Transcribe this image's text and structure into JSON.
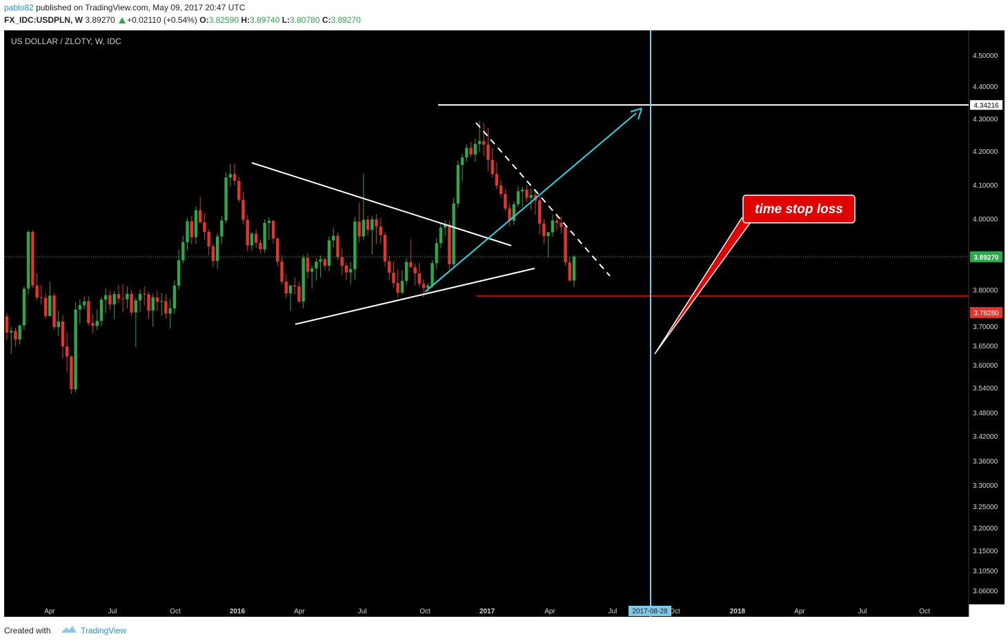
{
  "header": {
    "user": "pablo82",
    "published": "published on TradingView.com, May 09, 2017 20:47 UTC",
    "symbol": "FX_IDC:USDPLN, W",
    "last": "3.89270",
    "change": "+0.02110 (+0.54%)",
    "o_label": "O:",
    "o_value": "3.82590",
    "h_label": "H:",
    "h_value": "3.89740",
    "l_label": "L:",
    "l_value": "3.80780",
    "c_label": "C:",
    "c_value": "3.89270"
  },
  "footer": {
    "created_with": "Created with",
    "brand": "TradingView"
  },
  "colors": {
    "up": "#2ba84a",
    "down": "#e0362f",
    "cyan": "#2dd7e6",
    "vline": "#7fc8e8",
    "red_line": "#e00000",
    "callout": "#e00000"
  },
  "chart_data": {
    "type": "candlestick",
    "title": "US DOLLAR / ZLOTY, W, IDC",
    "price_ticks": [
      "4.50000",
      "4.40000",
      "4.30000",
      "4.20000",
      "4.10000",
      "4.00000",
      "3.80000",
      "3.70000",
      "3.65000",
      "3.60000",
      "3.54000",
      "3.48000",
      "3.42000",
      "3.36000",
      "3.30000",
      "3.25000",
      "3.20000",
      "3.15000",
      "3.10500",
      "3.06000"
    ],
    "time_ticks": [
      "Apr",
      "Jul",
      "Oct",
      "2016",
      "Apr",
      "Jul",
      "Oct",
      "2017",
      "Apr",
      "Jul",
      "Oct",
      "2018",
      "Apr",
      "Jul",
      "Oct"
    ],
    "time_ticks_bold": [
      false,
      false,
      false,
      true,
      false,
      false,
      false,
      true,
      false,
      false,
      false,
      true,
      false,
      false,
      false
    ],
    "last_price": "3.89270",
    "horizontal_level": "4.34216",
    "stop_level": "3.78280",
    "vertical_marker_date": "2017-08-28",
    "annotation": "time stop loss",
    "candles": [
      [
        3.727,
        3.737,
        3.664,
        3.684
      ],
      [
        3.684,
        3.699,
        3.628,
        3.688
      ],
      [
        3.688,
        3.697,
        3.648,
        3.666
      ],
      [
        3.666,
        3.706,
        3.653,
        3.702
      ],
      [
        3.702,
        3.809,
        3.691,
        3.803
      ],
      [
        3.803,
        3.968,
        3.787,
        3.963
      ],
      [
        3.963,
        3.967,
        3.804,
        3.812
      ],
      [
        3.812,
        3.847,
        3.772,
        3.779
      ],
      [
        3.779,
        3.814,
        3.759,
        3.778
      ],
      [
        3.778,
        3.791,
        3.721,
        3.728
      ],
      [
        3.728,
        3.823,
        3.727,
        3.784
      ],
      [
        3.784,
        3.791,
        3.692,
        3.698
      ],
      [
        3.698,
        3.743,
        3.675,
        3.713
      ],
      [
        3.713,
        3.731,
        3.617,
        3.648
      ],
      [
        3.648,
        3.685,
        3.581,
        3.622
      ],
      [
        3.622,
        3.625,
        3.525,
        3.536
      ],
      [
        3.536,
        3.767,
        3.528,
        3.746
      ],
      [
        3.746,
        3.774,
        3.708,
        3.758
      ],
      [
        3.758,
        3.781,
        3.746,
        3.768
      ],
      [
        3.768,
        3.781,
        3.702,
        3.709
      ],
      [
        3.709,
        3.732,
        3.683,
        3.701
      ],
      [
        3.701,
        3.746,
        3.691,
        3.715
      ],
      [
        3.715,
        3.779,
        3.701,
        3.773
      ],
      [
        3.773,
        3.804,
        3.735,
        3.785
      ],
      [
        3.785,
        3.798,
        3.745,
        3.76
      ],
      [
        3.76,
        3.796,
        3.719,
        3.788
      ],
      [
        3.788,
        3.814,
        3.763,
        3.776
      ],
      [
        3.776,
        3.816,
        3.739,
        3.774
      ],
      [
        3.774,
        3.809,
        3.749,
        3.789
      ],
      [
        3.789,
        3.8,
        3.729,
        3.738
      ],
      [
        3.738,
        3.779,
        3.646,
        3.771
      ],
      [
        3.771,
        3.801,
        3.739,
        3.789
      ],
      [
        3.789,
        3.809,
        3.756,
        3.787
      ],
      [
        3.787,
        3.795,
        3.721,
        3.743
      ],
      [
        3.743,
        3.789,
        3.699,
        3.779
      ],
      [
        3.779,
        3.797,
        3.742,
        3.767
      ],
      [
        3.767,
        3.791,
        3.728,
        3.769
      ],
      [
        3.769,
        3.789,
        3.721,
        3.735
      ],
      [
        3.735,
        3.774,
        3.694,
        3.749
      ],
      [
        3.749,
        3.827,
        3.734,
        3.812
      ],
      [
        3.812,
        3.913,
        3.799,
        3.883
      ],
      [
        3.883,
        3.952,
        3.873,
        3.934
      ],
      [
        3.934,
        4.003,
        3.911,
        3.993
      ],
      [
        3.993,
        4.008,
        3.929,
        3.948
      ],
      [
        3.948,
        4.037,
        3.929,
        4.025
      ],
      [
        4.025,
        4.065,
        3.987,
        3.99
      ],
      [
        3.99,
        4.016,
        3.941,
        3.963
      ],
      [
        3.963,
        3.97,
        3.897,
        3.922
      ],
      [
        3.922,
        3.931,
        3.864,
        3.881
      ],
      [
        3.881,
        3.958,
        3.859,
        3.95
      ],
      [
        3.95,
        4.008,
        3.93,
        3.995
      ],
      [
        3.995,
        4.138,
        3.987,
        4.122
      ],
      [
        4.122,
        4.162,
        4.096,
        4.132
      ],
      [
        4.132,
        4.163,
        4.099,
        4.112
      ],
      [
        4.112,
        4.123,
        4.049,
        4.056
      ],
      [
        4.056,
        4.08,
        3.984,
        3.997
      ],
      [
        3.997,
        4.011,
        3.908,
        3.925
      ],
      [
        3.925,
        3.963,
        3.91,
        3.958
      ],
      [
        3.958,
        3.969,
        3.918,
        3.932
      ],
      [
        3.932,
        3.942,
        3.902,
        3.914
      ],
      [
        3.914,
        3.999,
        3.904,
        3.988
      ],
      [
        3.988,
        4.004,
        3.94,
        3.994
      ],
      [
        3.994,
        3.996,
        3.93,
        3.944
      ],
      [
        3.944,
        3.948,
        3.868,
        3.879
      ],
      [
        3.879,
        3.897,
        3.814,
        3.823
      ],
      [
        3.823,
        3.845,
        3.777,
        3.79
      ],
      [
        3.79,
        3.813,
        3.741,
        3.812
      ],
      [
        3.812,
        3.835,
        3.787,
        3.809
      ],
      [
        3.809,
        3.822,
        3.765,
        3.768
      ],
      [
        3.768,
        3.898,
        3.749,
        3.89
      ],
      [
        3.89,
        3.903,
        3.832,
        3.851
      ],
      [
        3.851,
        3.868,
        3.804,
        3.86
      ],
      [
        3.86,
        3.889,
        3.826,
        3.879
      ],
      [
        3.879,
        3.896,
        3.835,
        3.886
      ],
      [
        3.886,
        3.891,
        3.856,
        3.868
      ],
      [
        3.868,
        3.949,
        3.853,
        3.939
      ],
      [
        3.939,
        3.975,
        3.92,
        3.952
      ],
      [
        3.952,
        3.961,
        3.883,
        3.892
      ],
      [
        3.892,
        3.917,
        3.841,
        3.868
      ],
      [
        3.868,
        3.877,
        3.827,
        3.849
      ],
      [
        3.849,
        3.879,
        3.814,
        3.858
      ],
      [
        3.858,
        4.005,
        3.829,
        3.992
      ],
      [
        3.992,
        4.048,
        3.932,
        3.95
      ],
      [
        3.95,
        4.133,
        3.939,
        3.997
      ],
      [
        3.997,
        4.009,
        3.952,
        3.969
      ],
      [
        3.969,
        4.008,
        3.9,
        3.998
      ],
      [
        3.998,
        4.013,
        3.93,
        3.978
      ],
      [
        3.978,
        4.003,
        3.93,
        3.954
      ],
      [
        3.954,
        3.962,
        3.865,
        3.88
      ],
      [
        3.88,
        3.896,
        3.827,
        3.848
      ],
      [
        3.848,
        3.88,
        3.806,
        3.819
      ],
      [
        3.819,
        3.858,
        3.779,
        3.792
      ],
      [
        3.792,
        3.855,
        3.787,
        3.825
      ],
      [
        3.825,
        3.888,
        3.814,
        3.878
      ],
      [
        3.878,
        3.942,
        3.866,
        3.863
      ],
      [
        3.863,
        3.874,
        3.813,
        3.846
      ],
      [
        3.846,
        3.876,
        3.808,
        3.817
      ],
      [
        3.817,
        3.83,
        3.779,
        3.805
      ],
      [
        3.805,
        3.819,
        3.788,
        3.812
      ],
      [
        3.812,
        3.883,
        3.805,
        3.875
      ],
      [
        3.875,
        3.946,
        3.859,
        3.931
      ],
      [
        3.931,
        3.986,
        3.917,
        3.975
      ],
      [
        3.975,
        3.996,
        3.951,
        3.983
      ],
      [
        3.983,
        3.994,
        3.858,
        3.872
      ],
      [
        3.872,
        4.061,
        3.866,
        4.045
      ],
      [
        4.045,
        4.171,
        4.032,
        4.159
      ],
      [
        4.159,
        4.192,
        4.111,
        4.181
      ],
      [
        4.181,
        4.221,
        4.168,
        4.21
      ],
      [
        4.21,
        4.228,
        4.182,
        4.19
      ],
      [
        4.19,
        4.238,
        4.168,
        4.222
      ],
      [
        4.222,
        4.293,
        4.197,
        4.231
      ],
      [
        4.231,
        4.288,
        4.185,
        4.22
      ],
      [
        4.22,
        4.272,
        4.141,
        4.174
      ],
      [
        4.174,
        4.21,
        4.122,
        4.132
      ],
      [
        4.132,
        4.168,
        4.087,
        4.098
      ],
      [
        4.098,
        4.114,
        4.062,
        4.073
      ],
      [
        4.073,
        4.089,
        4.022,
        4.03
      ],
      [
        4.03,
        4.046,
        3.978,
        3.994
      ],
      [
        3.994,
        4.052,
        3.982,
        4.043
      ],
      [
        4.043,
        4.097,
        4.034,
        4.081
      ],
      [
        4.081,
        4.095,
        4.036,
        4.086
      ],
      [
        4.086,
        4.099,
        4.05,
        4.062
      ],
      [
        4.062,
        4.09,
        4.025,
        4.07
      ],
      [
        4.07,
        4.089,
        4.012,
        4.054
      ],
      [
        4.054,
        4.066,
        3.955,
        3.986
      ],
      [
        3.986,
        3.999,
        3.929,
        3.951
      ],
      [
        3.951,
        3.963,
        3.891,
        3.962
      ],
      [
        3.962,
        4.012,
        3.949,
        3.995
      ],
      [
        3.995,
        4.015,
        3.968,
        3.988
      ],
      [
        3.988,
        4.007,
        3.959,
        3.977
      ],
      [
        3.977,
        3.985,
        3.868,
        3.877
      ],
      [
        3.877,
        3.893,
        3.822,
        3.826
      ],
      [
        3.826,
        3.897,
        3.808,
        3.893
      ]
    ]
  }
}
